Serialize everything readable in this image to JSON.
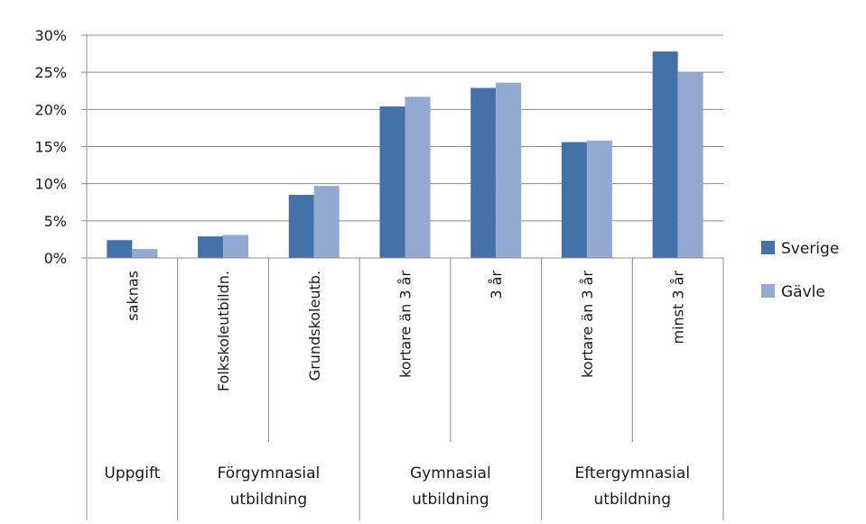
{
  "chart_data": {
    "type": "bar",
    "categories": [
      "saknas",
      "Folkskoleutbildn.",
      "Grundskoleutb.",
      "kortare än 3 år",
      "3 år",
      "kortare än 3 år",
      "minst 3 år"
    ],
    "groups": [
      {
        "label_lines": [
          "Uppgift"
        ],
        "span": 1
      },
      {
        "label_lines": [
          "Förgymnasial",
          "utbildning"
        ],
        "span": 2
      },
      {
        "label_lines": [
          "Gymnasial",
          "utbildning"
        ],
        "span": 2
      },
      {
        "label_lines": [
          "Eftergymnasial",
          "utbildning"
        ],
        "span": 2
      }
    ],
    "series": [
      {
        "name": "Sverige",
        "color": "#4470a8",
        "values": [
          2.4,
          2.9,
          8.5,
          20.4,
          22.9,
          15.6,
          27.8
        ]
      },
      {
        "name": "Gävle",
        "color": "#93a9d2",
        "values": [
          1.2,
          3.1,
          9.7,
          21.7,
          23.6,
          15.8,
          25.0
        ]
      }
    ],
    "yticks": [
      "0%",
      "5%",
      "10%",
      "15%",
      "20%",
      "25%",
      "30%"
    ],
    "ylim": [
      0,
      30
    ],
    "grid": true,
    "legend": "right"
  }
}
